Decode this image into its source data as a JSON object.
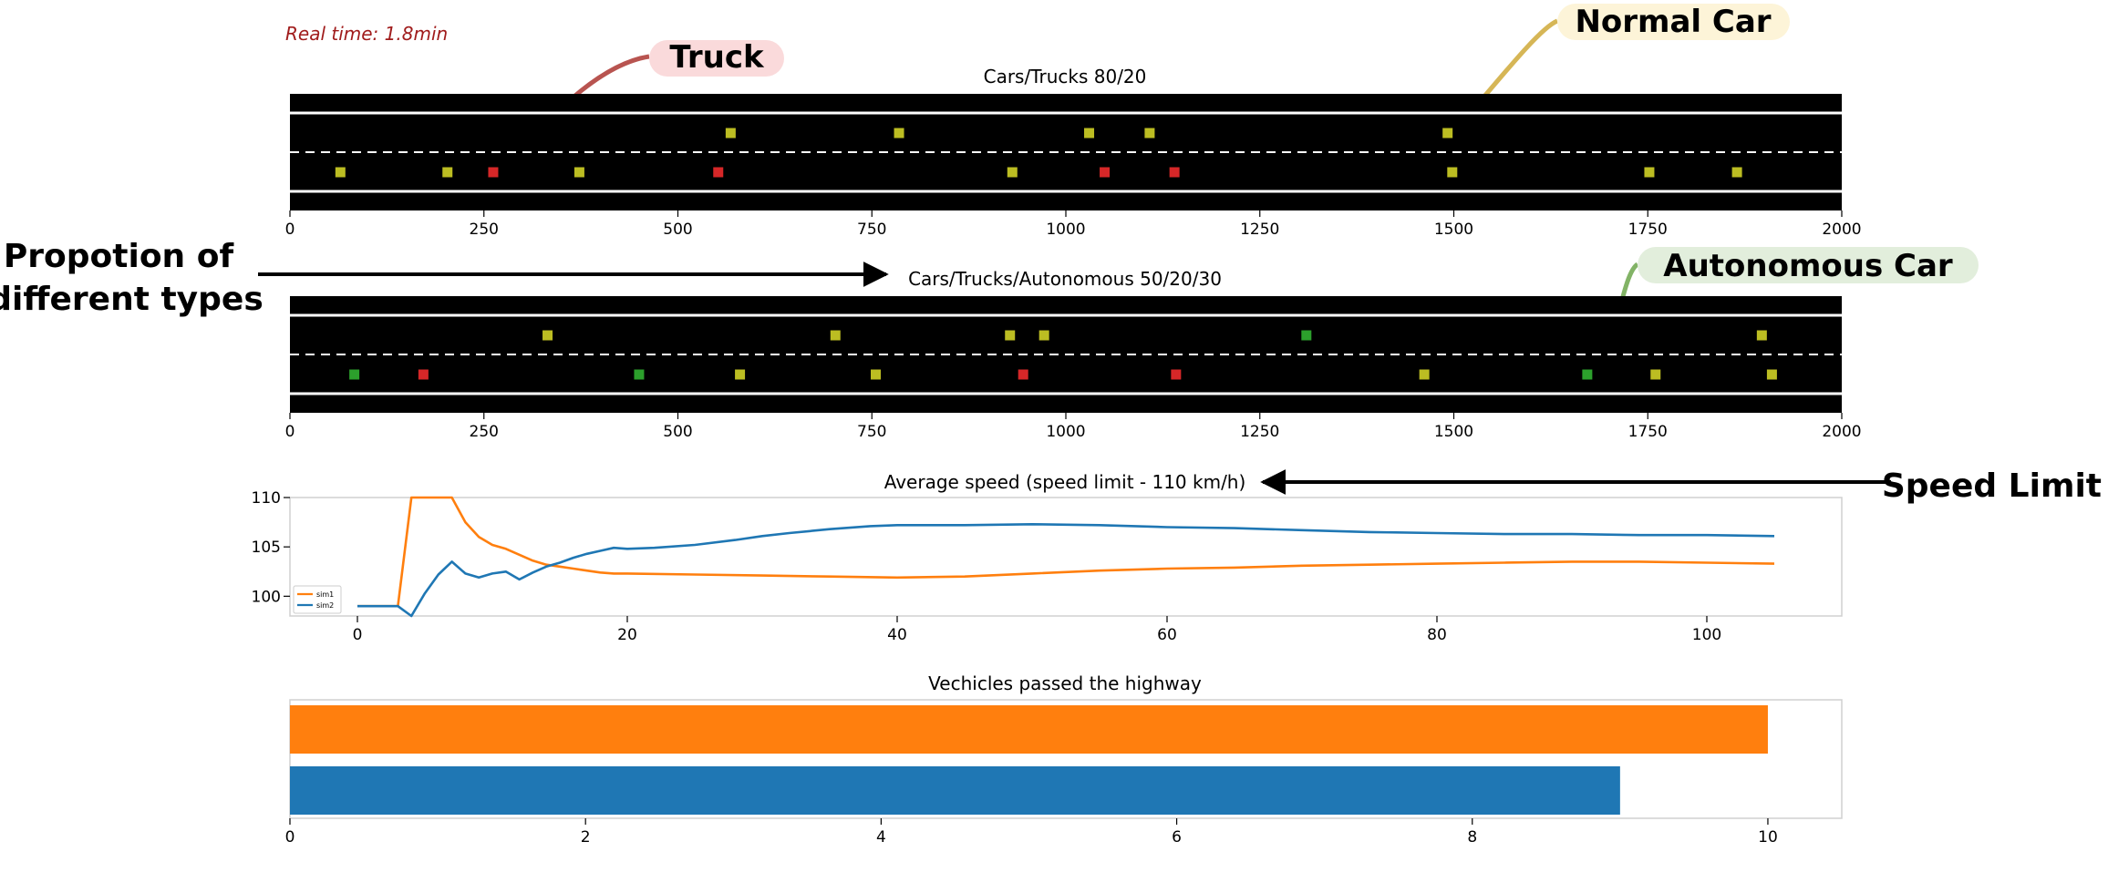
{
  "header": {
    "realtime_text": "Real time: 1.8min"
  },
  "callouts": {
    "truck": "Truck",
    "normal_car": "Normal Car",
    "autonomous_car": "Autonomous Car",
    "proportion_line1": "Propotion of",
    "proportion_line2": "different types",
    "speed_limit": "Speed Limit"
  },
  "colors": {
    "road": "#000000",
    "truck": "#d62728",
    "car": "#bcbd22",
    "autonomous": "#2ca02c",
    "sim1": "#ff7f0e",
    "sim2": "#1f77b4",
    "truck_callout_bg": "#fadadb",
    "car_callout_bg": "#fdf4d8",
    "auto_callout_bg": "#e2eedc"
  },
  "chart_data": [
    {
      "type": "scatter",
      "title": "Cars/Trucks 80/20",
      "xlim": [
        0,
        2000
      ],
      "xticks": [
        0,
        250,
        500,
        750,
        1000,
        1250,
        1500,
        1750,
        2000
      ],
      "lanes": 2,
      "vehicles": [
        {
          "x": 65,
          "lane": 1,
          "type": "car"
        },
        {
          "x": 203,
          "lane": 1,
          "type": "car"
        },
        {
          "x": 262,
          "lane": 1,
          "type": "truck"
        },
        {
          "x": 373,
          "lane": 1,
          "type": "car"
        },
        {
          "x": 552,
          "lane": 1,
          "type": "truck"
        },
        {
          "x": 568,
          "lane": 0,
          "type": "car"
        },
        {
          "x": 785,
          "lane": 0,
          "type": "car"
        },
        {
          "x": 931,
          "lane": 1,
          "type": "car"
        },
        {
          "x": 1030,
          "lane": 0,
          "type": "car"
        },
        {
          "x": 1050,
          "lane": 1,
          "type": "truck"
        },
        {
          "x": 1108,
          "lane": 0,
          "type": "car"
        },
        {
          "x": 1140,
          "lane": 1,
          "type": "truck"
        },
        {
          "x": 1492,
          "lane": 0,
          "type": "car"
        },
        {
          "x": 1498,
          "lane": 1,
          "type": "car"
        },
        {
          "x": 1752,
          "lane": 1,
          "type": "car"
        },
        {
          "x": 1865,
          "lane": 1,
          "type": "car"
        }
      ]
    },
    {
      "type": "scatter",
      "title": "Cars/Trucks/Autonomous 50/20/30",
      "xlim": [
        0,
        2000
      ],
      "xticks": [
        0,
        250,
        500,
        750,
        1000,
        1250,
        1500,
        1750,
        2000
      ],
      "lanes": 2,
      "vehicles": [
        {
          "x": 83,
          "lane": 1,
          "type": "autonomous"
        },
        {
          "x": 172,
          "lane": 1,
          "type": "truck"
        },
        {
          "x": 332,
          "lane": 0,
          "type": "car"
        },
        {
          "x": 450,
          "lane": 1,
          "type": "autonomous"
        },
        {
          "x": 580,
          "lane": 1,
          "type": "car"
        },
        {
          "x": 703,
          "lane": 0,
          "type": "car"
        },
        {
          "x": 755,
          "lane": 1,
          "type": "car"
        },
        {
          "x": 928,
          "lane": 0,
          "type": "car"
        },
        {
          "x": 945,
          "lane": 1,
          "type": "truck"
        },
        {
          "x": 972,
          "lane": 0,
          "type": "car"
        },
        {
          "x": 1142,
          "lane": 1,
          "type": "truck"
        },
        {
          "x": 1310,
          "lane": 0,
          "type": "autonomous"
        },
        {
          "x": 1462,
          "lane": 1,
          "type": "car"
        },
        {
          "x": 1672,
          "lane": 1,
          "type": "autonomous"
        },
        {
          "x": 1760,
          "lane": 1,
          "type": "car"
        },
        {
          "x": 1897,
          "lane": 0,
          "type": "car"
        },
        {
          "x": 1910,
          "lane": 1,
          "type": "car"
        }
      ]
    },
    {
      "type": "line",
      "title": "Average speed (speed limit - 110 km/h)",
      "xlim": [
        -5,
        110
      ],
      "ylim": [
        98,
        110
      ],
      "xticks": [
        0,
        20,
        40,
        60,
        80,
        100
      ],
      "yticks": [
        100,
        105,
        110
      ],
      "legend": "lower-left",
      "series": [
        {
          "name": "sim1",
          "color": "#ff7f0e",
          "x": [
            0,
            3,
            4,
            5,
            6,
            7,
            8,
            9,
            10,
            11,
            12,
            13,
            14,
            15,
            16,
            17,
            18,
            19,
            20,
            25,
            30,
            35,
            40,
            45,
            50,
            55,
            60,
            65,
            70,
            75,
            80,
            85,
            90,
            95,
            100,
            105
          ],
          "y": [
            99,
            99,
            110,
            110,
            110,
            110,
            107.5,
            106,
            105.2,
            104.8,
            104.2,
            103.6,
            103.2,
            103,
            102.8,
            102.6,
            102.4,
            102.3,
            102.3,
            102.2,
            102.1,
            102,
            101.9,
            102,
            102.3,
            102.6,
            102.8,
            102.9,
            103.1,
            103.2,
            103.3,
            103.4,
            103.5,
            103.5,
            103.4,
            103.3
          ]
        },
        {
          "name": "sim2",
          "color": "#1f77b4",
          "x": [
            0,
            3,
            4,
            5,
            6,
            7,
            8,
            9,
            10,
            11,
            12,
            13,
            14,
            15,
            16,
            17,
            18,
            19,
            20,
            22,
            25,
            28,
            30,
            32,
            35,
            38,
            40,
            45,
            50,
            55,
            60,
            65,
            70,
            75,
            80,
            85,
            90,
            95,
            100,
            105
          ],
          "y": [
            99,
            99,
            98,
            100.3,
            102.2,
            103.5,
            102.3,
            101.9,
            102.3,
            102.5,
            101.7,
            102.4,
            103,
            103.4,
            103.9,
            104.3,
            104.6,
            104.9,
            104.8,
            104.9,
            105.2,
            105.7,
            106.1,
            106.4,
            106.8,
            107.1,
            107.2,
            107.2,
            107.3,
            107.2,
            107,
            106.9,
            106.7,
            106.5,
            106.4,
            106.3,
            106.3,
            106.2,
            106.2,
            106.1
          ]
        }
      ]
    },
    {
      "type": "bar",
      "orientation": "horizontal",
      "title": "Vechicles passed the highway",
      "xlim": [
        0,
        10.5
      ],
      "xticks": [
        0,
        2,
        4,
        6,
        8,
        10
      ],
      "bars": [
        {
          "value": 10,
          "color": "#ff7f0e"
        },
        {
          "value": 9,
          "color": "#1f77b4"
        }
      ]
    }
  ]
}
